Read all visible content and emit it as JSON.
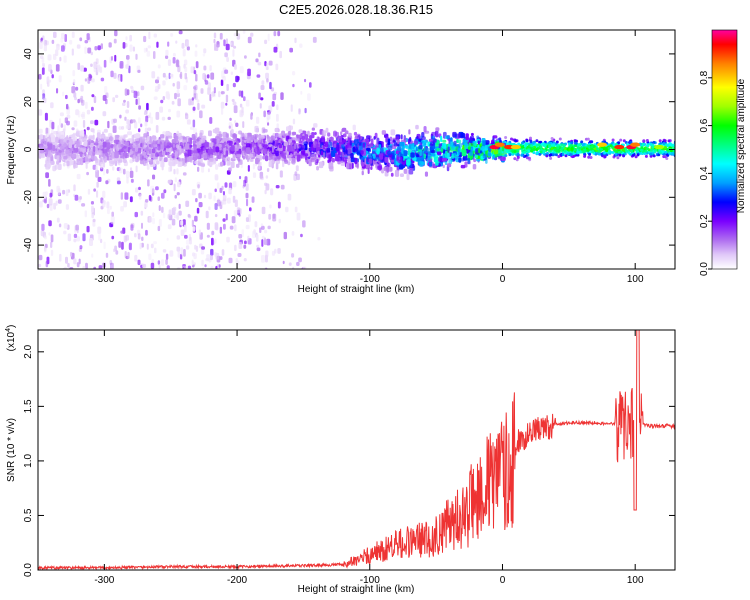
{
  "figure_title": "C2E5.2026.028.18.36.R15",
  "chart_data": [
    {
      "type": "heatmap",
      "title": "",
      "xlabel": "Height of straight line (km)",
      "ylabel": "Frequency (Hz)",
      "xlim": [
        -350,
        130
      ],
      "ylim": [
        -50,
        50
      ],
      "x_ticks": [
        -300,
        -200,
        -100,
        0,
        100
      ],
      "y_ticks": [
        -40,
        -20,
        0,
        20,
        40
      ],
      "colorbar": {
        "label": "Normalized spectral amplitude",
        "range": [
          0,
          1
        ],
        "ticks": [
          0.0,
          0.2,
          0.4,
          0.6,
          0.8
        ],
        "colors": [
          "#ffffff",
          "#e0c8f8",
          "#b070f0",
          "#7a00ff",
          "#0000ff",
          "#00a0ff",
          "#00ffff",
          "#00ff80",
          "#00ff00",
          "#a0ff00",
          "#ffff00",
          "#ff8000",
          "#ff0000",
          "#ff00a0"
        ]
      },
      "band": [
        {
          "x": -350,
          "center": 1,
          "width": 10,
          "amplitude": 0.12
        },
        {
          "x": -300,
          "center": 1,
          "width": 10,
          "amplitude": 0.14
        },
        {
          "x": -250,
          "center": 1,
          "width": 10,
          "amplitude": 0.16
        },
        {
          "x": -200,
          "center": 2,
          "width": 10,
          "amplitude": 0.18
        },
        {
          "x": -150,
          "center": 2,
          "width": 11,
          "amplitude": 0.24
        },
        {
          "x": -120,
          "center": 1,
          "width": 11,
          "amplitude": 0.3
        },
        {
          "x": -100,
          "center": 0,
          "width": 11,
          "amplitude": 0.34
        },
        {
          "x": -80,
          "center": -1,
          "width": 12,
          "amplitude": 0.4
        },
        {
          "x": -60,
          "center": 0,
          "width": 12,
          "amplitude": 0.45
        },
        {
          "x": -40,
          "center": 1,
          "width": 12,
          "amplitude": 0.5
        },
        {
          "x": -25,
          "center": 1,
          "width": 8,
          "amplitude": 0.55
        },
        {
          "x": 0,
          "center": 1,
          "width": 6,
          "amplitude": 0.6
        },
        {
          "x": 40,
          "center": 1,
          "width": 5,
          "amplitude": 0.6
        },
        {
          "x": 80,
          "center": 1,
          "width": 5,
          "amplitude": 0.62
        },
        {
          "x": 130,
          "center": 1,
          "width": 5,
          "amplitude": 0.6
        }
      ],
      "hotspots": [
        {
          "x": -6,
          "y": 1,
          "value": 0.95
        },
        {
          "x": 5,
          "y": 1,
          "value": 0.9
        },
        {
          "x": -2,
          "y": 2,
          "value": 0.85
        },
        {
          "x": 10,
          "y": 1,
          "value": 0.8
        },
        {
          "x": 75,
          "y": 2,
          "value": 0.8
        },
        {
          "x": 88,
          "y": 1,
          "value": 0.9
        },
        {
          "x": 97,
          "y": 1,
          "value": 0.95
        },
        {
          "x": 100,
          "y": 2,
          "value": 0.85
        },
        {
          "x": 118,
          "y": 1,
          "value": 0.7
        }
      ]
    },
    {
      "type": "line",
      "title": "",
      "xlabel": "Height of straight line (km)",
      "ylabel": "SNR (10 * v/v)",
      "y_multiplier": "(x10",
      "y_multiplier_exp": "4",
      "xlim": [
        -350,
        130
      ],
      "ylim": [
        0,
        2.2
      ],
      "x_ticks": [
        -300,
        -200,
        -100,
        0,
        100
      ],
      "y_ticks": [
        0.0,
        0.5,
        1.0,
        1.5,
        2.0
      ],
      "y_tick_labels": [
        "0.0",
        "0.5",
        "1.0",
        "1.5",
        "2.0"
      ],
      "series": [
        {
          "color": "#ee3333",
          "x": [
            -350,
            -300,
            -250,
            -200,
            -150,
            -120,
            -110,
            -100,
            -90,
            -80,
            -70,
            -60,
            -50,
            -45,
            -40,
            -35,
            -30,
            -25,
            -22,
            -20,
            -15,
            -10,
            -5,
            0,
            5,
            10,
            15,
            20,
            30,
            40,
            50,
            60,
            70,
            80,
            85,
            90,
            95,
            100,
            102,
            105,
            110,
            120,
            130
          ],
          "y": [
            0.02,
            0.02,
            0.03,
            0.03,
            0.04,
            0.05,
            0.1,
            0.15,
            0.2,
            0.25,
            0.28,
            0.3,
            0.35,
            0.4,
            0.45,
            0.5,
            0.55,
            0.6,
            0.7,
            0.75,
            0.8,
            0.85,
            0.9,
            0.95,
            1.05,
            1.15,
            1.2,
            1.25,
            1.3,
            1.33,
            1.35,
            1.35,
            1.35,
            1.34,
            1.34,
            1.33,
            1.35,
            1.4,
            1.3,
            1.33,
            1.32,
            1.32,
            1.32
          ]
        }
      ]
    }
  ]
}
